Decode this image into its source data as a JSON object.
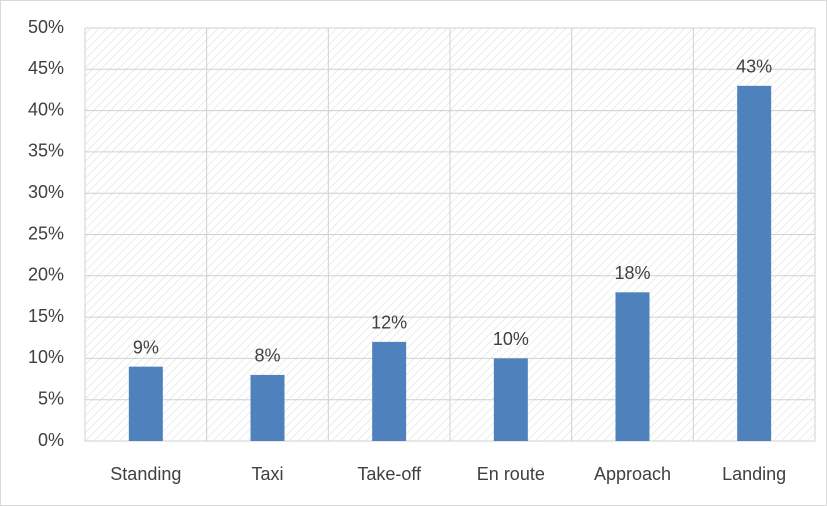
{
  "chart_data": {
    "type": "bar",
    "categories": [
      "Standing",
      "Taxi",
      "Take-off",
      "En route",
      "Approach",
      "Landing"
    ],
    "values": [
      9,
      8,
      12,
      10,
      18,
      43
    ],
    "value_labels": [
      "9%",
      "8%",
      "12%",
      "10%",
      "18%",
      "43%"
    ],
    "color": "#4f81bd",
    "ylim": [
      0,
      50
    ],
    "yticks": [
      {
        "value": 0,
        "label": "0%"
      },
      {
        "value": 5,
        "label": "5%"
      },
      {
        "value": 10,
        "label": "10%"
      },
      {
        "value": 15,
        "label": "15%"
      },
      {
        "value": 20,
        "label": "20%"
      },
      {
        "value": 25,
        "label": "25%"
      },
      {
        "value": 30,
        "label": "30%"
      },
      {
        "value": 35,
        "label": "35%"
      },
      {
        "value": 40,
        "label": "40%"
      },
      {
        "value": 45,
        "label": "45%"
      },
      {
        "value": 50,
        "label": "50%"
      }
    ],
    "grid": true
  }
}
